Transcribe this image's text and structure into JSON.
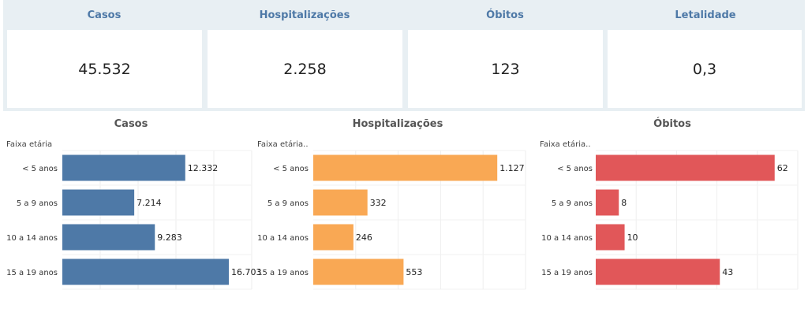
{
  "kpis": [
    {
      "title": "Casos",
      "value": "45.532"
    },
    {
      "title": "Hospitalizações",
      "value": "2.258"
    },
    {
      "title": "Óbitos",
      "value": "123"
    },
    {
      "title": "Letalidade",
      "value": "0,3"
    }
  ],
  "chart_data": [
    {
      "type": "bar",
      "orientation": "horizontal",
      "title": "Casos",
      "ylabel": "Faixa etária",
      "categories": [
        "< 5 anos",
        "5 a 9 anos",
        "10 a 14 anos",
        "15 a 19 anos"
      ],
      "values": [
        12332,
        7214,
        9283,
        16703
      ],
      "value_labels": [
        "12.332",
        "7.214",
        "9.283",
        "16.703"
      ],
      "xlim": [
        0,
        19000
      ],
      "color": "#4e79a7",
      "grid": true
    },
    {
      "type": "bar",
      "orientation": "horizontal",
      "title": "Hospitalizações",
      "ylabel": "Faixa etária..",
      "categories": [
        "< 5 anos",
        "5 a 9 anos",
        "10 a 14 anos",
        "15 a 19 anos"
      ],
      "values": [
        1127,
        332,
        246,
        553
      ],
      "value_labels": [
        "1.127",
        "332",
        "246",
        "553"
      ],
      "xlim": [
        0,
        1300
      ],
      "color": "#f9a854",
      "grid": true
    },
    {
      "type": "bar",
      "orientation": "horizontal",
      "title": "Óbitos",
      "ylabel": "Faixa etária..",
      "categories": [
        "< 5 anos",
        "5 a 9 anos",
        "10 a 14 anos",
        "15 a 19 anos"
      ],
      "values": [
        62,
        8,
        10,
        43
      ],
      "value_labels": [
        "62",
        "8",
        "10",
        "43"
      ],
      "xlim": [
        0,
        70
      ],
      "color": "#e15759",
      "grid": true
    }
  ]
}
